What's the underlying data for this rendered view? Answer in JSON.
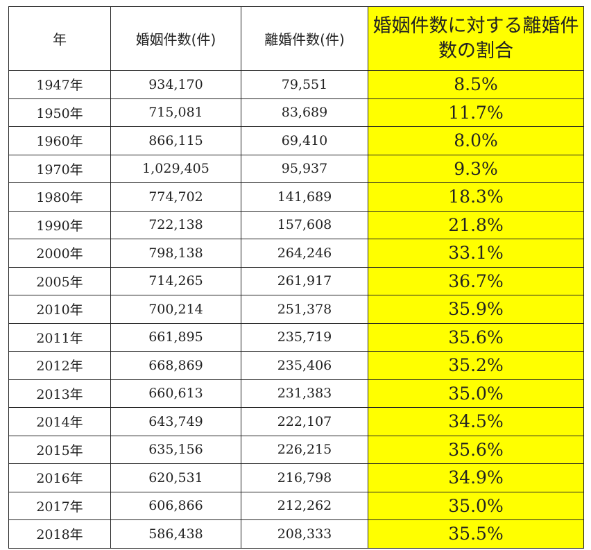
{
  "table": {
    "headers": [
      "年",
      "婚姻件数(件)",
      "離婚件数(件)",
      "婚姻件数に対する離婚件数の割合"
    ],
    "highlight_color": "#ffff00",
    "rows": [
      {
        "year": "1947年",
        "marriages": "934,170",
        "divorces": "79,551",
        "ratio": "8.5%"
      },
      {
        "year": "1950年",
        "marriages": "715,081",
        "divorces": "83,689",
        "ratio": "11.7%"
      },
      {
        "year": "1960年",
        "marriages": "866,115",
        "divorces": "69,410",
        "ratio": "8.0%"
      },
      {
        "year": "1970年",
        "marriages": "1,029,405",
        "divorces": "95,937",
        "ratio": "9.3%"
      },
      {
        "year": "1980年",
        "marriages": "774,702",
        "divorces": "141,689",
        "ratio": "18.3%"
      },
      {
        "year": "1990年",
        "marriages": "722,138",
        "divorces": "157,608",
        "ratio": "21.8%"
      },
      {
        "year": "2000年",
        "marriages": "798,138",
        "divorces": "264,246",
        "ratio": "33.1%"
      },
      {
        "year": "2005年",
        "marriages": "714,265",
        "divorces": "261,917",
        "ratio": "36.7%"
      },
      {
        "year": "2010年",
        "marriages": "700,214",
        "divorces": "251,378",
        "ratio": "35.9%"
      },
      {
        "year": "2011年",
        "marriages": "661,895",
        "divorces": "235,719",
        "ratio": "35.6%"
      },
      {
        "year": "2012年",
        "marriages": "668,869",
        "divorces": "235,406",
        "ratio": "35.2%"
      },
      {
        "year": "2013年",
        "marriages": "660,613",
        "divorces": "231,383",
        "ratio": "35.0%"
      },
      {
        "year": "2014年",
        "marriages": "643,749",
        "divorces": "222,107",
        "ratio": "34.5%"
      },
      {
        "year": "2015年",
        "marriages": "635,156",
        "divorces": "226,215",
        "ratio": "35.6%"
      },
      {
        "year": "2016年",
        "marriages": "620,531",
        "divorces": "216,798",
        "ratio": "34.9%"
      },
      {
        "year": "2017年",
        "marriages": "606,866",
        "divorces": "212,262",
        "ratio": "35.0%"
      },
      {
        "year": "2018年",
        "marriages": "586,438",
        "divorces": "208,333",
        "ratio": "35.5%"
      }
    ]
  }
}
